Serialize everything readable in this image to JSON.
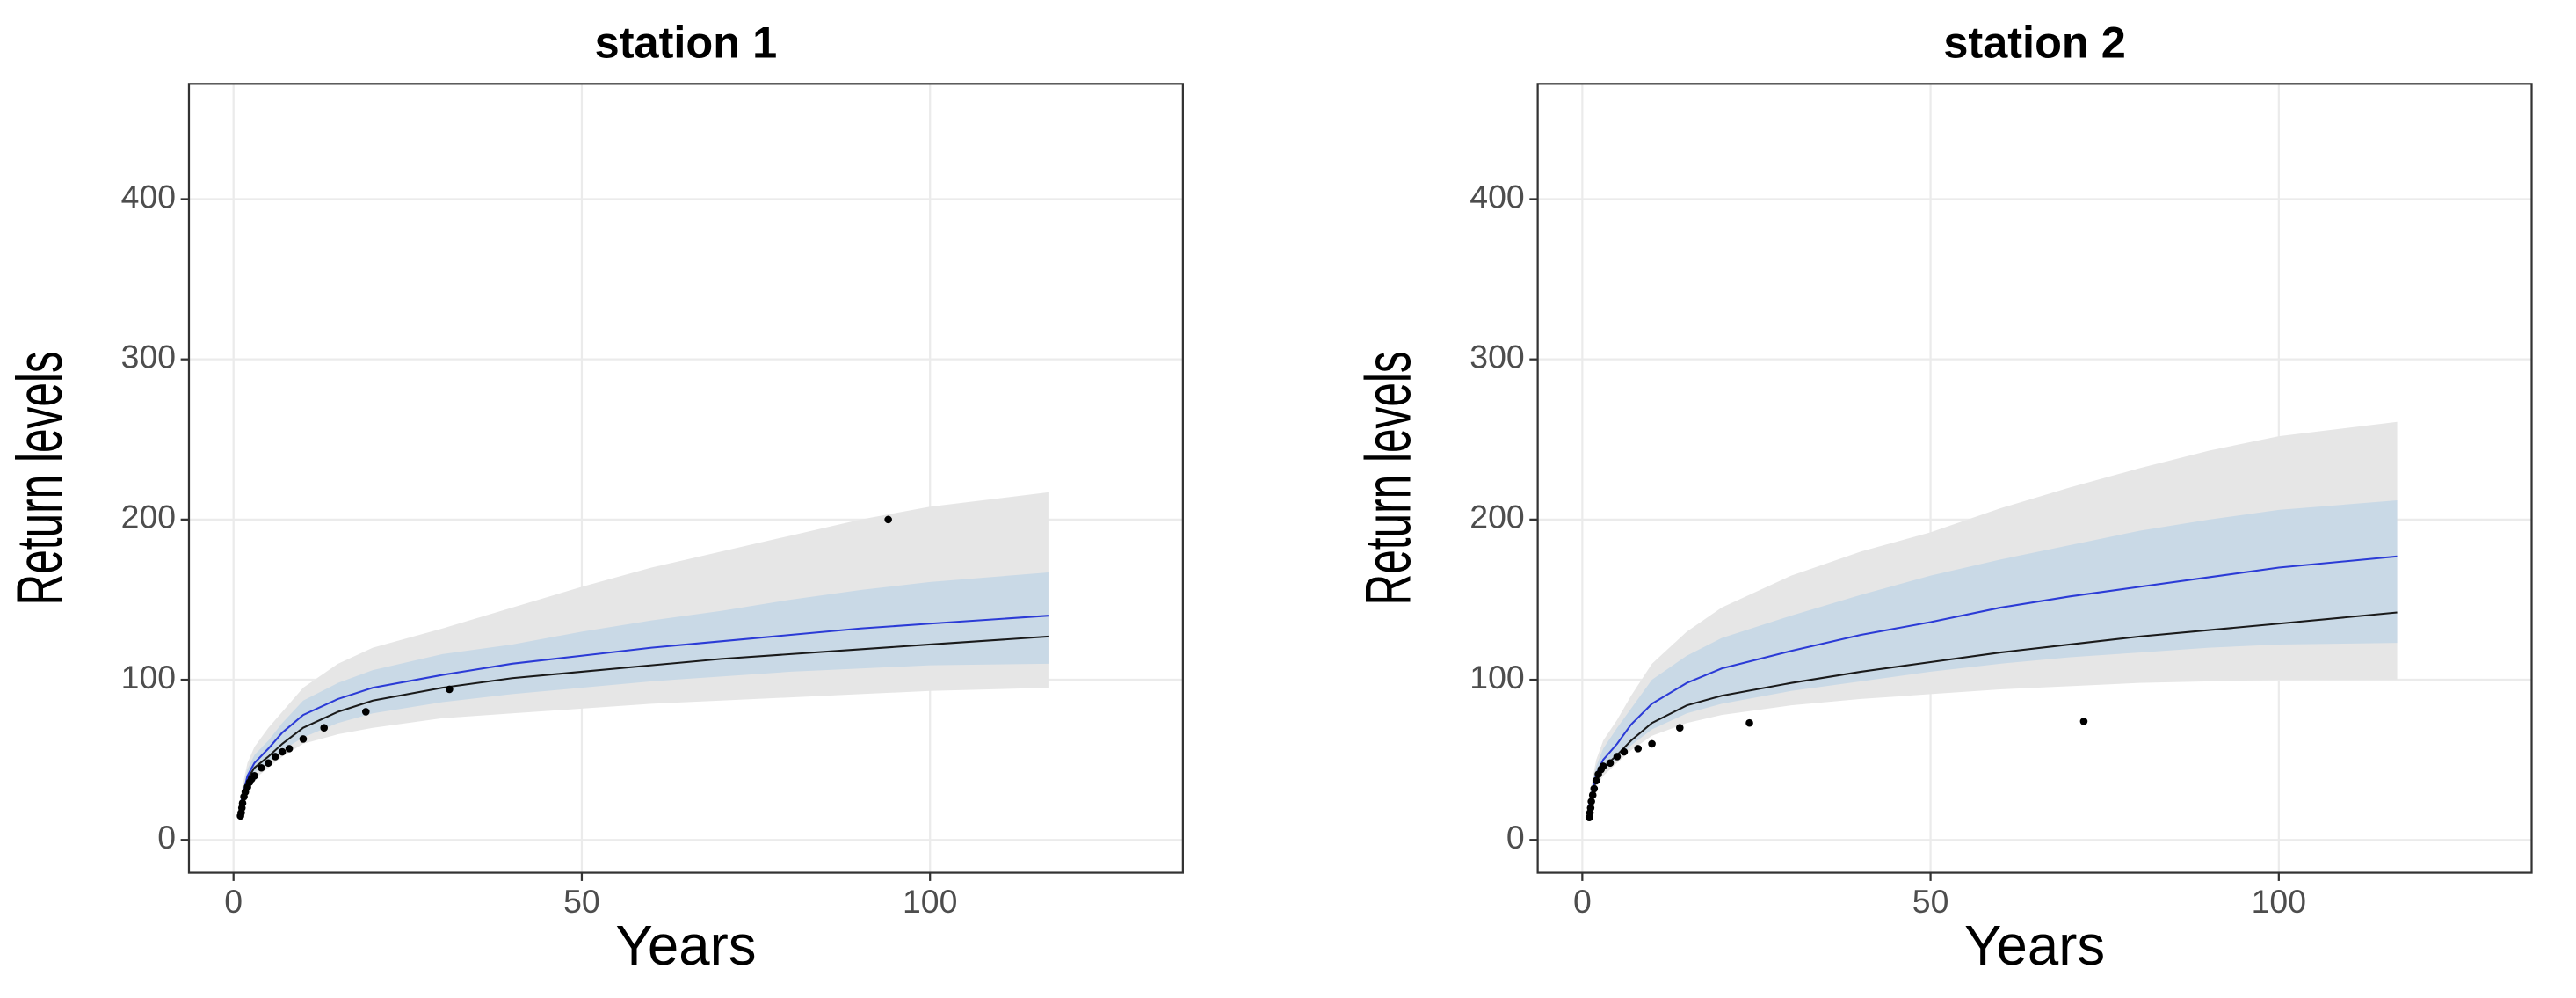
{
  "chart_data": [
    {
      "type": "line",
      "title": "station 1",
      "x_label": "Years",
      "y_label": "Return levels",
      "xlim": [
        -6.4,
        136.3
      ],
      "ylim": [
        -20.5,
        472
      ],
      "xticks": [
        0,
        50,
        100
      ],
      "yticks": [
        0,
        100,
        200,
        300,
        400
      ],
      "grid": true,
      "x": [
        1,
        2,
        3,
        5,
        7,
        10,
        15,
        20,
        30,
        40,
        50,
        60,
        70,
        80,
        90,
        100,
        117
      ],
      "bands": [
        {
          "color": "#e6e6e6",
          "lower": [
            16,
            32,
            38,
            45,
            52,
            60,
            66,
            70,
            76,
            79,
            82,
            85,
            87,
            89,
            91,
            93,
            95
          ],
          "upper": [
            28,
            48,
            58,
            70,
            80,
            95,
            110,
            120,
            132,
            145,
            158,
            170,
            180,
            190,
            200,
            208,
            217
          ]
        },
        {
          "color": "#c9d9e6",
          "lower": [
            18,
            35,
            42,
            49,
            56,
            64,
            73,
            79,
            86,
            91,
            95,
            99,
            102,
            105,
            107,
            109,
            110
          ],
          "upper": [
            25,
            44,
            53,
            62,
            73,
            87,
            98,
            106,
            116,
            122,
            130,
            137,
            143,
            150,
            156,
            161,
            167
          ]
        }
      ],
      "series": [
        {
          "color": "#1a1a1a",
          "values": [
            20,
            38,
            45,
            52,
            60,
            70,
            80,
            87,
            95,
            101,
            105,
            109,
            113,
            116,
            119,
            122,
            127
          ]
        },
        {
          "color": "#2b3bd6",
          "values": [
            22,
            40,
            48,
            57,
            67,
            78,
            88,
            95,
            103,
            110,
            115,
            120,
            124,
            128,
            132,
            135,
            140
          ]
        }
      ],
      "points": {
        "color": "#000000",
        "x": [
          1,
          1.1,
          1.2,
          1.3,
          1.5,
          1.7,
          2,
          2.3,
          2.6,
          3,
          4,
          5,
          6,
          7,
          8,
          10,
          13,
          19,
          31,
          94
        ],
        "y": [
          15,
          17,
          20,
          23,
          27,
          30,
          33,
          36,
          38,
          40,
          45,
          48,
          52,
          55,
          57,
          63,
          70,
          80,
          94,
          200
        ]
      }
    },
    {
      "type": "line",
      "title": "station 2",
      "x_label": "Years",
      "y_label": "Return levels",
      "xlim": [
        -6.4,
        136.3
      ],
      "ylim": [
        -20.5,
        472
      ],
      "xticks": [
        0,
        50,
        100
      ],
      "yticks": [
        0,
        100,
        200,
        300,
        400
      ],
      "grid": true,
      "x": [
        1,
        2,
        3,
        5,
        7,
        10,
        15,
        20,
        30,
        40,
        50,
        60,
        70,
        80,
        90,
        100,
        117
      ],
      "bands": [
        {
          "color": "#e6e6e6",
          "lower": [
            16,
            33,
            40,
            48,
            56,
            65,
            73,
            78,
            84,
            88,
            91,
            94,
            96,
            98,
            99,
            100,
            100
          ],
          "upper": [
            28,
            50,
            62,
            75,
            90,
            110,
            130,
            145,
            165,
            180,
            192,
            207,
            220,
            232,
            243,
            252,
            261
          ]
        },
        {
          "color": "#c9d9e6",
          "lower": [
            18,
            36,
            43,
            51,
            59,
            69,
            79,
            85,
            93,
            99,
            105,
            110,
            114,
            117,
            120,
            122,
            123
          ],
          "upper": [
            26,
            46,
            57,
            70,
            82,
            100,
            115,
            126,
            140,
            153,
            165,
            175,
            184,
            193,
            200,
            206,
            212
          ]
        }
      ],
      "series": [
        {
          "color": "#1a1a1a",
          "values": [
            20,
            38,
            45,
            53,
            62,
            73,
            84,
            90,
            98,
            105,
            111,
            117,
            122,
            127,
            131,
            135,
            142
          ]
        },
        {
          "color": "#2b3bd6",
          "values": [
            22,
            41,
            50,
            60,
            72,
            85,
            98,
            107,
            118,
            128,
            136,
            145,
            152,
            158,
            164,
            170,
            177
          ]
        }
      ],
      "points": {
        "color": "#000000",
        "x": [
          1,
          1.1,
          1.2,
          1.3,
          1.5,
          1.7,
          2,
          2.3,
          2.7,
          3,
          4,
          5,
          6,
          8,
          10,
          14,
          24,
          72
        ],
        "y": [
          14,
          17,
          20,
          24,
          28,
          32,
          37,
          41,
          44,
          46,
          48,
          52,
          55,
          57,
          60,
          70,
          73,
          74
        ]
      }
    }
  ]
}
